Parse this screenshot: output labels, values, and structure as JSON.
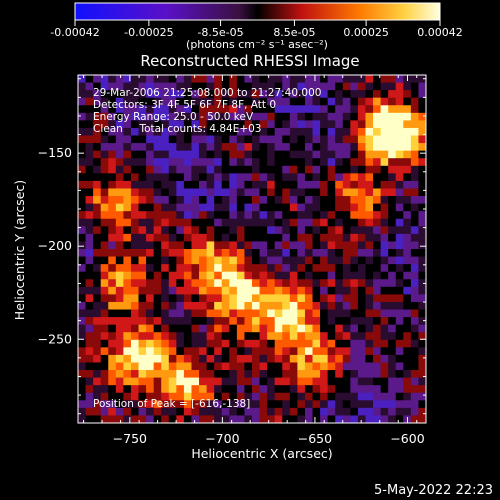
{
  "chart_data": {
    "type": "heatmap",
    "title": "Reconstructed RHESSI Image",
    "xlabel": "Heliocentric X (arcsec)",
    "ylabel": "Heliocentric Y (arcsec)",
    "x_ticks": [
      -750,
      -700,
      -650,
      -600
    ],
    "y_ticks": [
      -150,
      -200,
      -250
    ],
    "xlim": [
      -778,
      -590
    ],
    "ylim": [
      -295,
      -108
    ],
    "colorbar": {
      "ticks": [
        "-0.00042",
        "-0.00025",
        "-8.5e-05",
        "8.5e-05",
        "0.00025",
        "0.00042"
      ],
      "range": [
        -0.00042,
        0.00042
      ],
      "label": "(photons cm⁻² s⁻¹ asec⁻²)"
    },
    "annotations": [
      "29-Mar-2006 21:25:08.000 to 21:27:40.000",
      "Detectors: 3F 4F 5F 6F 7F 8F, Att 0",
      "Energy Range: 25.0 - 50.0 keV",
      "Clean     Total counts: 4.84E+03"
    ],
    "peak_label": "Position of Peak = [-616,-138]",
    "peak": [
      -616,
      -138
    ],
    "timestamp": "5-May-2022 22:23",
    "bright_regions": [
      {
        "x": -610,
        "y": -140,
        "level": 1.0
      },
      {
        "x": -745,
        "y": -258,
        "level": 0.85
      },
      {
        "x": -720,
        "y": -275,
        "level": 0.75
      },
      {
        "x": -755,
        "y": -222,
        "level": 0.65
      },
      {
        "x": -690,
        "y": -225,
        "level": 0.7
      },
      {
        "x": -665,
        "y": -235,
        "level": 0.8
      },
      {
        "x": -650,
        "y": -260,
        "level": 0.65
      },
      {
        "x": -625,
        "y": -175,
        "level": 0.55
      },
      {
        "x": -705,
        "y": -205,
        "level": 0.5
      },
      {
        "x": -760,
        "y": -180,
        "level": 0.45
      }
    ]
  }
}
